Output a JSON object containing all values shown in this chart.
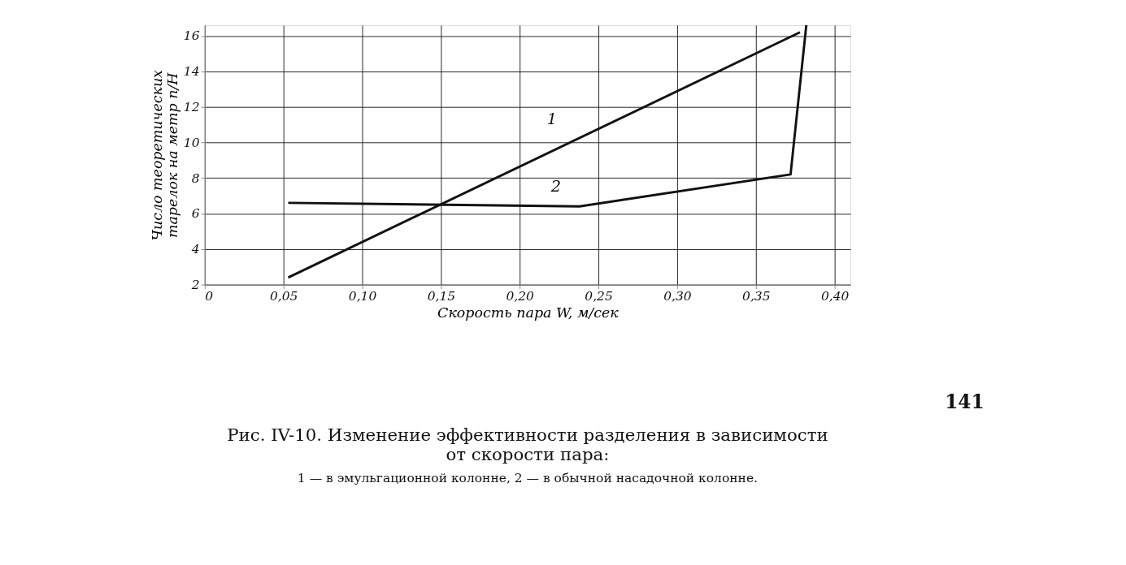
{
  "chart_data": {
    "type": "line",
    "title": [
      "Рис. IV-10. Изменение эффективности разделения в зависимости",
      "от скорости пара:"
    ],
    "subtitle": "1 — в эмульгационной колонне, 2 — в обычной насадочной колонне.",
    "xlabel": "Скорость пара W, м/сек",
    "ylabel": [
      "Число теоретических",
      "тарелок на метр n/H"
    ],
    "x": [
      0.053,
      0.378
    ],
    "series": [
      {
        "name": "1",
        "color": "#111111",
        "values": [
          2.4,
          16.2
        ]
      },
      {
        "name": "2",
        "color": "#111111",
        "x": [
          0.053,
          0.238,
          0.372,
          0.382
        ],
        "values": [
          6.6,
          6.4,
          8.2,
          16.6
        ]
      }
    ],
    "xlim": [
      0,
      0.41
    ],
    "ylim": [
      2,
      16.6
    ],
    "xticks": [
      {
        "value": 0,
        "label": "0"
      },
      {
        "value": 0.05,
        "label": "0,05"
      },
      {
        "value": 0.1,
        "label": "0,10"
      },
      {
        "value": 0.15,
        "label": "0,15"
      },
      {
        "value": 0.2,
        "label": "0,20"
      },
      {
        "value": 0.25,
        "label": "0,25"
      },
      {
        "value": 0.3,
        "label": "0,30"
      },
      {
        "value": 0.35,
        "label": "0,35"
      },
      {
        "value": 0.4,
        "label": "0,40"
      }
    ],
    "yticks": [
      2,
      4,
      6,
      8,
      10,
      12,
      14,
      16
    ],
    "grid": true,
    "legend": false,
    "marker": "none",
    "line_style": "solid",
    "annotations": [
      "141"
    ]
  }
}
